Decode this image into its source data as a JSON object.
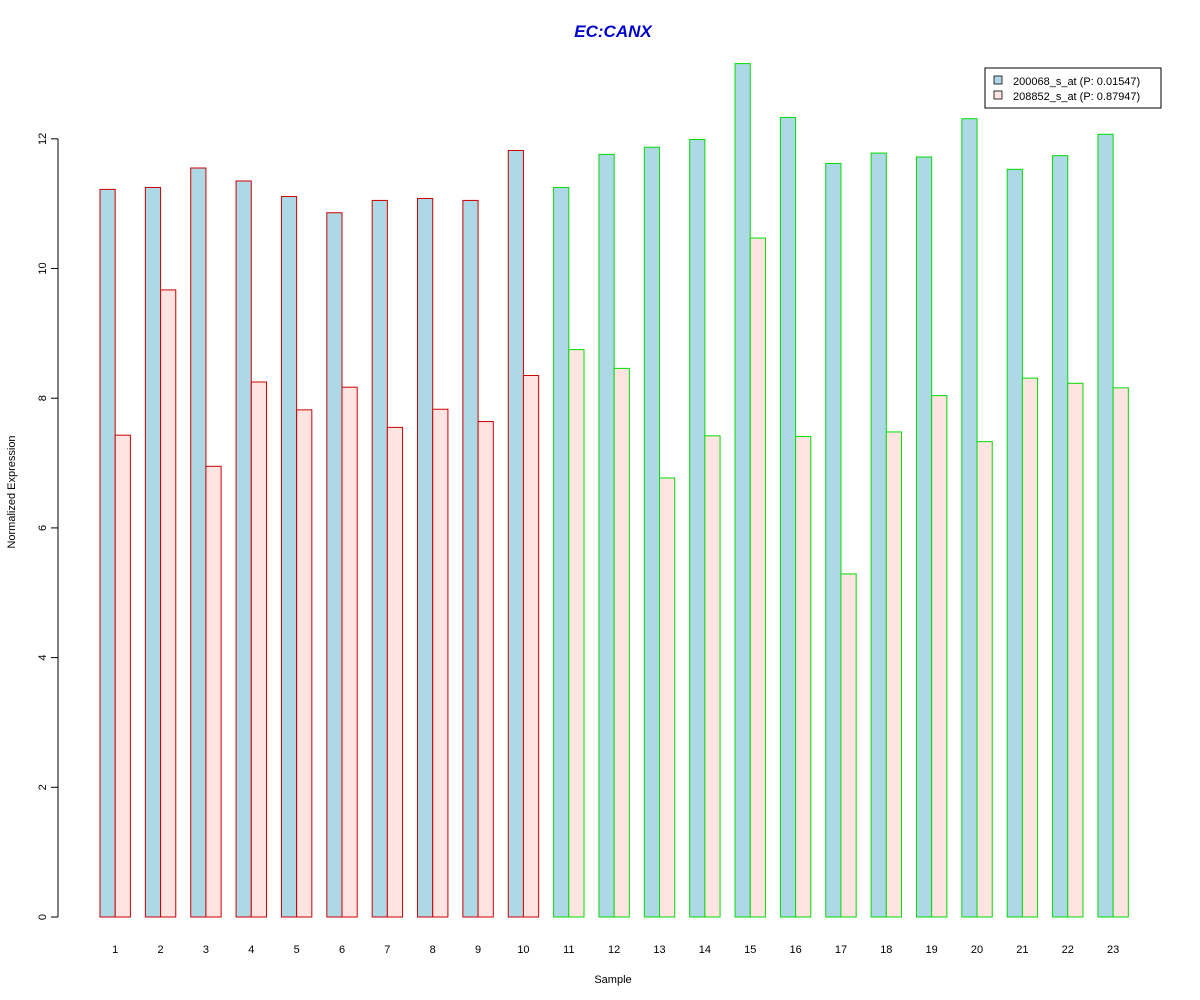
{
  "chart_data": {
    "type": "bar",
    "title": "EC:CANX",
    "xlabel": "Sample",
    "ylabel": "Normalized Expression",
    "ylim": [
      0,
      13.2
    ],
    "yticks": [
      0,
      2,
      4,
      6,
      8,
      10,
      12
    ],
    "categories": [
      "1",
      "2",
      "3",
      "4",
      "5",
      "6",
      "7",
      "8",
      "9",
      "10",
      "11",
      "12",
      "13",
      "14",
      "15",
      "16",
      "17",
      "18",
      "19",
      "20",
      "21",
      "22",
      "23"
    ],
    "groups": [
      "red",
      "red",
      "red",
      "red",
      "red",
      "red",
      "red",
      "red",
      "red",
      "red",
      "green",
      "green",
      "green",
      "green",
      "green",
      "green",
      "green",
      "green",
      "green",
      "green",
      "green",
      "green",
      "green"
    ],
    "group_colors": {
      "red": "#cc0000",
      "green": "#00dd00"
    },
    "series": [
      {
        "name": "200068_s_at (P: 0.01547)",
        "fill": "#add8e6",
        "values": [
          11.22,
          11.25,
          11.55,
          11.35,
          11.11,
          10.86,
          11.05,
          11.08,
          11.05,
          11.82,
          11.25,
          11.76,
          11.87,
          11.99,
          13.16,
          12.33,
          11.62,
          11.78,
          11.72,
          12.31,
          11.53,
          11.74,
          12.07
        ]
      },
      {
        "name": "208852_s_at (P: 0.87947)",
        "fill": "#ffe4e1",
        "values": [
          7.43,
          9.67,
          6.95,
          8.25,
          7.82,
          8.17,
          7.55,
          7.83,
          7.64,
          8.35,
          8.75,
          8.46,
          6.77,
          7.42,
          10.47,
          7.41,
          5.29,
          7.48,
          8.04,
          7.33,
          8.31,
          8.23,
          8.16
        ]
      }
    ],
    "title_color": "#0000cc",
    "legend_position": "top-right",
    "grid": false
  }
}
